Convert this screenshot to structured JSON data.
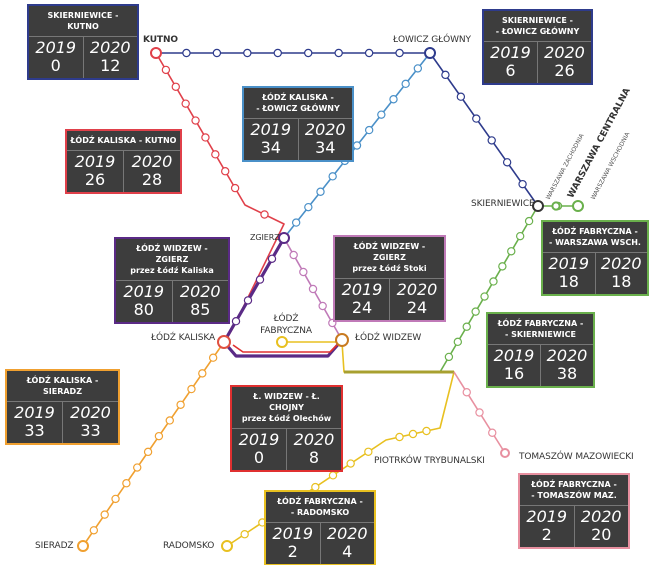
{
  "stations": {
    "kutno": "KUTNO",
    "lowicz_glowny": "ŁOWICZ GŁÓWNY",
    "skierniewice": "SKIERNIEWICE",
    "zgierz": "ZGIERZ",
    "lodz_kaliska": "ŁÓDŹ KALISKA",
    "lodz_fabryczna": "ŁÓDŹ FABRYCZNA",
    "lodz_widzew": "ŁÓDŹ WIDZEW",
    "piotrkow": "PIOTRKÓW TRYBUNALSKI",
    "tomaszow": "TOMASZÓW MAZOWIECKI",
    "sieradz": "SIERADZ",
    "radomsko": "RADOMSKO",
    "warszawa_zachodnia": "WARSZAWA ZACHODNIA",
    "warszawa_centralna": "WARSZAWA CENTRALNA",
    "warszawa_wschodnia": "WARSZAWA WSCHODNIA"
  },
  "boxes": {
    "skierniewice_kutno": {
      "title": "SKIERNIEWICE - KUTNO",
      "y1": "2019",
      "y2": "2020",
      "v1": "0",
      "v2": "12",
      "color": "#2e3b8c"
    },
    "skierniewice_lowicz": {
      "title": "SKIERNIEWICE -\n- ŁOWICZ GŁÓWNY",
      "y1": "2019",
      "y2": "2020",
      "v1": "6",
      "v2": "26",
      "color": "#2e3b8c"
    },
    "kaliska_lowicz": {
      "title": "ŁÓDŹ KALISKA -\n- ŁOWICZ GŁÓWNY",
      "y1": "2019",
      "y2": "2020",
      "v1": "34",
      "v2": "34",
      "color": "#4a90c8"
    },
    "kaliska_kutno": {
      "title": "ŁÓDŹ KALISKA - KUTNO",
      "y1": "2019",
      "y2": "2020",
      "v1": "26",
      "v2": "28",
      "color": "#e0404a"
    },
    "widzew_zgierz_kaliska": {
      "title": "ŁÓDŹ WIDZEW - ZGIERZ\nprzez Łódź Kaliska",
      "y1": "2019",
      "y2": "2020",
      "v1": "80",
      "v2": "85",
      "color": "#5a2a86"
    },
    "widzew_zgierz_stoki": {
      "title": "ŁÓDŹ WIDZEW - ZGIERZ\nprzez Łódź Stoki",
      "y1": "2019",
      "y2": "2020",
      "v1": "24",
      "v2": "24",
      "color": "#c07ab8"
    },
    "fabryczna_wschodnia": {
      "title": "ŁÓDŹ FABRYCZNA -\n- WARSZAWA WSCH.",
      "y1": "2019",
      "y2": "2020",
      "v1": "18",
      "v2": "18",
      "color": "#6ab04c"
    },
    "fabryczna_skierniewice": {
      "title": "ŁÓDŹ FABRYCZNA -\n- SKIERNIEWICE",
      "y1": "2019",
      "y2": "2020",
      "v1": "16",
      "v2": "38",
      "color": "#6ab04c"
    },
    "kaliska_sieradz": {
      "title": "ŁÓDŹ KALISKA - SIERADZ",
      "y1": "2019",
      "y2": "2020",
      "v1": "33",
      "v2": "33",
      "color": "#f0a030"
    },
    "widzew_chojny": {
      "title": "Ł. WIDZEW - Ł. CHOJNY\nprzez Łódź Olechów",
      "y1": "2019",
      "y2": "2020",
      "v1": "0",
      "v2": "8",
      "color": "#e03030"
    },
    "fabryczna_radomsko": {
      "title": "ŁÓDŹ FABRYCZNA -\n- RADOMSKO",
      "y1": "2019",
      "y2": "2020",
      "v1": "2",
      "v2": "4",
      "color": "#e8c020"
    },
    "fabryczna_tomaszow": {
      "title": "ŁÓDŹ FABRYCZNA -\n- TOMASZÓW MAZ.",
      "y1": "2019",
      "y2": "2020",
      "v1": "2",
      "v2": "20",
      "color": "#e890a0"
    }
  }
}
